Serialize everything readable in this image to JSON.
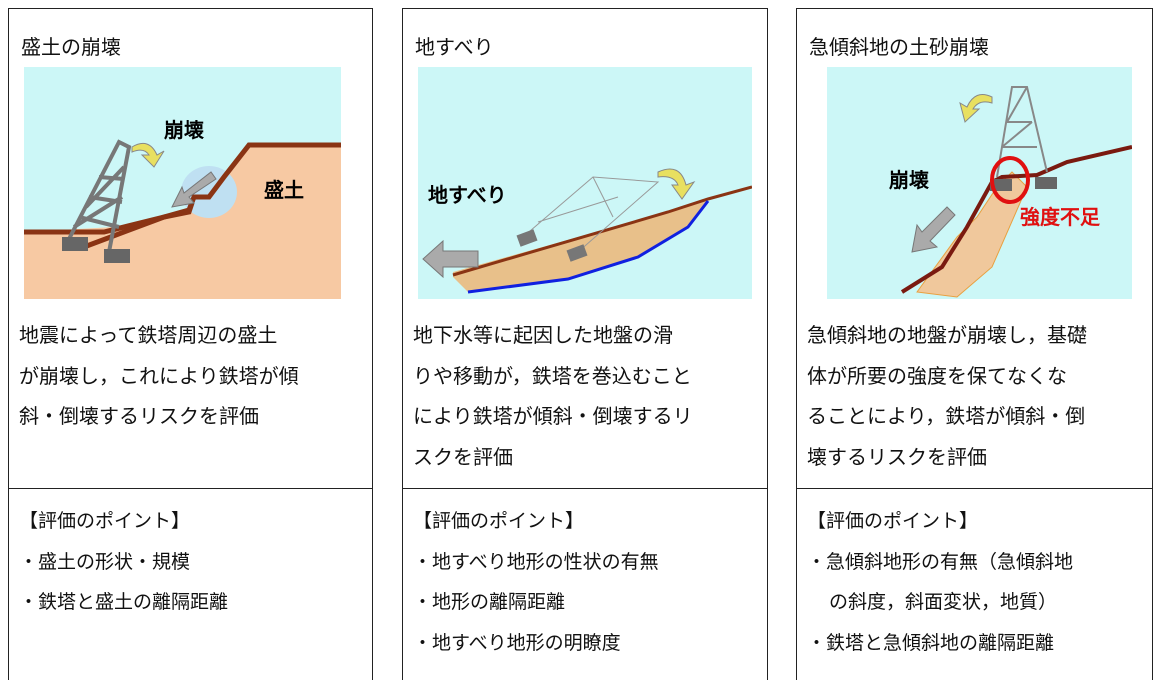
{
  "columns": [
    {
      "title": "盛土の崩壊",
      "figure_labels": [
        "崩壊",
        "盛土"
      ],
      "description": [
        "地震によって鉄塔周辺の盛土",
        "が崩壊し，これにより鉄塔が傾",
        "斜・倒壊するリスクを評価"
      ],
      "points_heading": "【評価のポイント】",
      "points": [
        "・盛土の形状・規模",
        "・鉄塔と盛土の離隔距離"
      ]
    },
    {
      "title": "地すべり",
      "figure_labels": [
        "地すべり"
      ],
      "description": [
        "地下水等に起因した地盤の滑",
        "りや移動が，鉄塔を巻込むこと",
        "により鉄塔が傾斜・倒壊するリ",
        "スクを評価"
      ],
      "points_heading": "【評価のポイント】",
      "points": [
        "・地すべり地形の性状の有無",
        "・地形の離隔距離",
        "・地すべり地形の明瞭度"
      ]
    },
    {
      "title": "急傾斜地の土砂崩壊",
      "figure_labels": [
        "崩壊",
        "強度不足"
      ],
      "description": [
        "急傾斜地の地盤が崩壊し，基礎",
        "体が所要の強度を保てなくな",
        "ることにより，鉄塔が傾斜・倒",
        "壊するリスクを評価"
      ],
      "points_heading": "【評価のポイント】",
      "points": [
        "・急傾斜地形の有無（急傾斜地",
        "の斜度，斜面変状，地質）",
        "・鉄塔と急傾斜地の離隔距離"
      ]
    }
  ]
}
